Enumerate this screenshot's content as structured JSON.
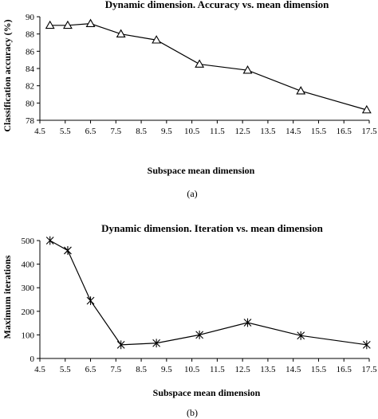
{
  "chart_data": [
    {
      "type": "line",
      "panel_caption": "(a)",
      "title": "Dynamic dimension. Accuracy vs. mean dimension",
      "xlabel": "Subspace mean dimension",
      "ylabel": "Classification accuracy (%)",
      "x_ticks": [
        "4.5",
        "5.5",
        "6.5",
        "7.5",
        "8.5",
        "9.5",
        "10.5",
        "11.5",
        "12.5",
        "13.5",
        "14.5",
        "15.5",
        "16.5",
        "17.5"
      ],
      "y_ticks": [
        "78",
        "80",
        "82",
        "84",
        "86",
        "88",
        "90"
      ],
      "xlim": [
        4.5,
        17.5
      ],
      "ylim": [
        78,
        90
      ],
      "grid": false,
      "marker": "triangle",
      "series": [
        {
          "x": [
            4.9,
            5.6,
            6.5,
            7.7,
            9.1,
            10.8,
            12.7,
            14.8,
            17.4
          ],
          "y": [
            89.0,
            89.0,
            89.2,
            88.0,
            87.3,
            84.5,
            83.8,
            81.4,
            79.2
          ]
        }
      ]
    },
    {
      "type": "line",
      "panel_caption": "(b)",
      "title": "Dynamic dimension. Iteration vs. mean dimension",
      "xlabel": "Subspace mean dimension",
      "ylabel": "Maximum iterations",
      "x_ticks": [
        "4.5",
        "5.5",
        "6.5",
        "7.5",
        "8.5",
        "9.5",
        "10.5",
        "11.5",
        "12.5",
        "13.5",
        "14.5",
        "15.5",
        "16.5",
        "17.5"
      ],
      "y_ticks": [
        "0",
        "100",
        "200",
        "300",
        "400",
        "500"
      ],
      "xlim": [
        4.5,
        17.5
      ],
      "ylim": [
        0,
        500
      ],
      "grid": false,
      "marker": "star",
      "series": [
        {
          "x": [
            4.9,
            5.6,
            6.5,
            7.7,
            9.1,
            10.8,
            12.7,
            14.8,
            17.4
          ],
          "y": [
            500,
            458,
            245,
            58,
            65,
            100,
            152,
            97,
            58
          ]
        }
      ]
    }
  ]
}
